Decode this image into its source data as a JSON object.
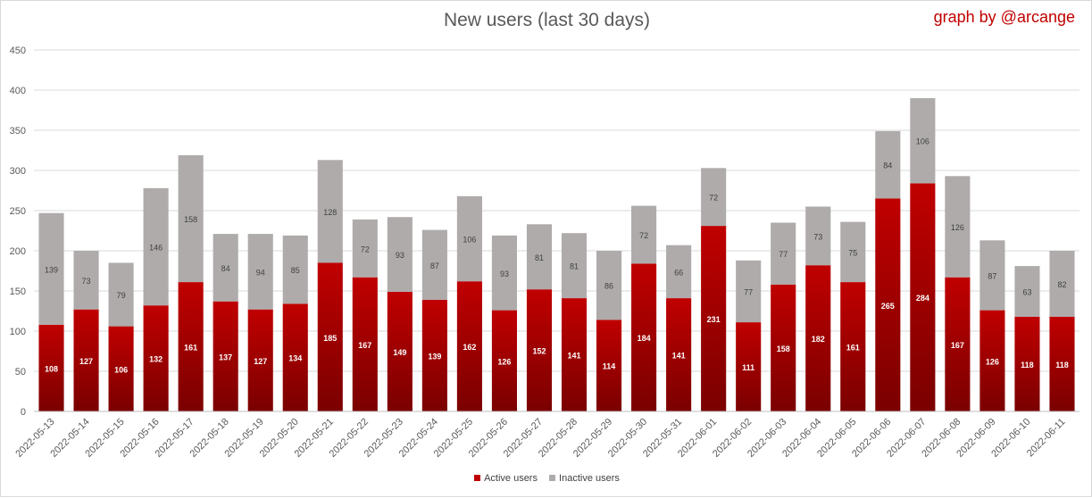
{
  "title": "New users (last 30 days)",
  "credit": "graph by @arcange",
  "colors": {
    "active_top": "#c00000",
    "active_bottom": "#7a0000",
    "inactive": "#afabab",
    "grid": "#d9d9d9",
    "axis_text": "#595959"
  },
  "legend": [
    {
      "label": "Active users",
      "color": "#c00000"
    },
    {
      "label": "Inactive users",
      "color": "#afabab"
    }
  ],
  "chart_data": {
    "type": "bar",
    "stacked": true,
    "title": "New users (last 30 days)",
    "xlabel": "",
    "ylabel": "",
    "ylim": [
      0,
      450
    ],
    "yticks": [
      0,
      50,
      100,
      150,
      200,
      250,
      300,
      350,
      400,
      450
    ],
    "grid": true,
    "legend_position": "bottom",
    "categories": [
      "2022-05-13",
      "2022-05-14",
      "2022-05-15",
      "2022-05-16",
      "2022-05-17",
      "2022-05-18",
      "2022-05-19",
      "2022-05-20",
      "2022-05-21",
      "2022-05-22",
      "2022-05-23",
      "2022-05-24",
      "2022-05-25",
      "2022-05-26",
      "2022-05-27",
      "2022-05-28",
      "2022-05-29",
      "2022-05-30",
      "2022-05-31",
      "2022-06-01",
      "2022-06-02",
      "2022-06-03",
      "2022-06-04",
      "2022-06-05",
      "2022-06-06",
      "2022-06-07",
      "2022-06-08",
      "2022-06-09",
      "2022-06-10",
      "2022-06-11"
    ],
    "series": [
      {
        "name": "Active users",
        "color": "#c00000",
        "values": [
          108,
          127,
          106,
          132,
          161,
          137,
          127,
          134,
          185,
          167,
          149,
          139,
          162,
          126,
          152,
          141,
          114,
          184,
          141,
          231,
          111,
          158,
          182,
          161,
          265,
          284,
          167,
          126,
          118,
          118
        ]
      },
      {
        "name": "Inactive users",
        "color": "#afabab",
        "values": [
          139,
          73,
          79,
          146,
          158,
          84,
          94,
          85,
          128,
          72,
          93,
          87,
          106,
          93,
          81,
          81,
          86,
          72,
          66,
          72,
          77,
          77,
          73,
          75,
          84,
          106,
          126,
          87,
          63,
          82
        ]
      }
    ]
  }
}
